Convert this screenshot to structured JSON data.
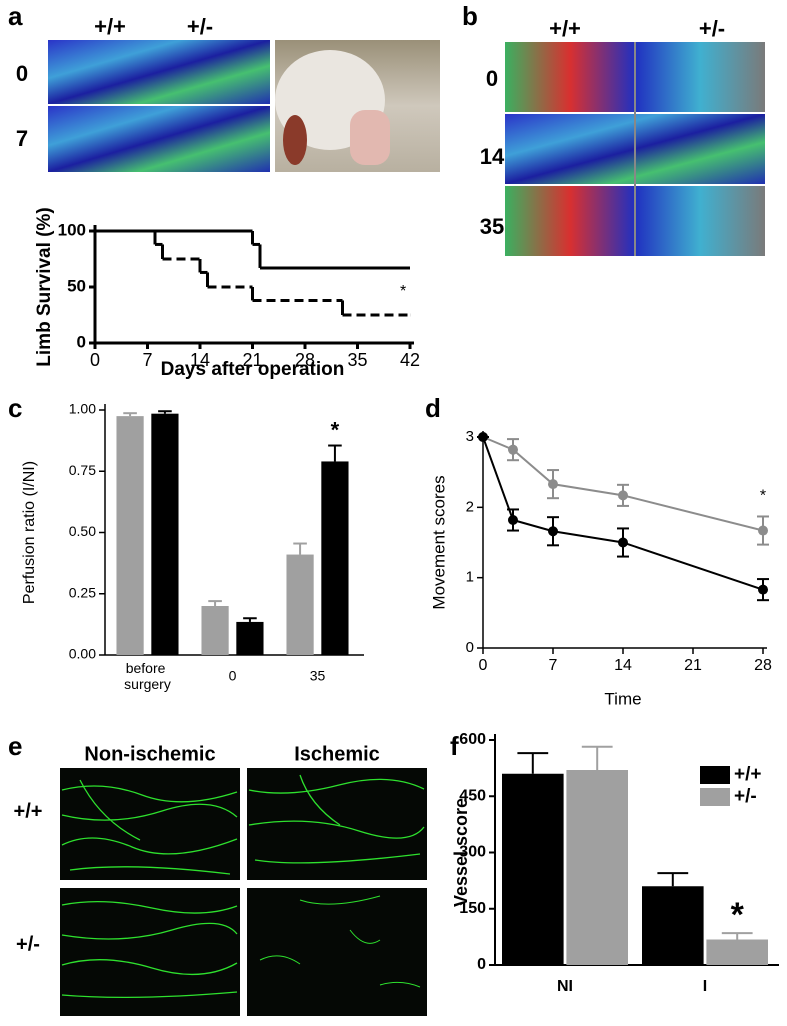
{
  "image_panels": [
    {
      "panel": "a",
      "columns": [
        "+/+",
        "+/-"
      ],
      "rows": [
        "0",
        "7"
      ]
    },
    {
      "panel": "b",
      "columns": [
        "+/+",
        "+/-"
      ],
      "rows": [
        "0",
        "14",
        "35"
      ]
    },
    {
      "panel": "e",
      "columns": [
        "Non-ischemic",
        "Ischemic"
      ],
      "rows": [
        "+/+",
        "+/-"
      ]
    }
  ],
  "chart_data": [
    {
      "type": "step",
      "y_label": "Limb Survival (%)",
      "x_label": "Days after operation",
      "xlim": [
        0,
        42
      ],
      "xticks": [
        0,
        7,
        14,
        21,
        28,
        35,
        42
      ],
      "ylim": [
        0,
        100
      ],
      "yticks": [
        0,
        50,
        100
      ],
      "annotation": "*",
      "series": [
        {
          "color": "#000000",
          "line_style": "solid",
          "x": [
            0,
            21,
            22,
            42
          ],
          "values": [
            100,
            88,
            67,
            67
          ]
        },
        {
          "color": "#000000",
          "line_style": "dashed",
          "x": [
            0,
            8,
            9,
            14,
            15,
            21,
            33,
            42
          ],
          "values": [
            100,
            88,
            75,
            63,
            50,
            38,
            25,
            25
          ]
        }
      ]
    },
    {
      "type": "bar",
      "panel": "c",
      "y_label": "Perfusion ratio (I/NI)",
      "categories": [
        "before surgery",
        "0",
        "35"
      ],
      "ylim": [
        0,
        1
      ],
      "yticks": [
        {
          "value": 0,
          "label": "0.00"
        },
        {
          "value": 0.25,
          "label": "0.25"
        },
        {
          "value": 0.5,
          "label": "0.50"
        },
        {
          "value": 0.75,
          "label": "0.75"
        },
        {
          "value": 1,
          "label": "1.00"
        }
      ],
      "annotation": "*",
      "series": [
        {
          "color": "#a0a0a0",
          "values": [
            0.975,
            0.2,
            0.41
          ],
          "errors": [
            0.012,
            0.02,
            0.045
          ]
        },
        {
          "color": "#000000",
          "values": [
            0.985,
            0.135,
            0.79
          ],
          "errors": [
            0.01,
            0.015,
            0.065
          ]
        }
      ]
    },
    {
      "type": "line",
      "panel": "d",
      "y_label": "Movement scores",
      "x_label": "Time",
      "xlim": [
        0,
        28
      ],
      "xticks": [
        0,
        7,
        14,
        21,
        28
      ],
      "ylim": [
        0,
        3
      ],
      "yticks": [
        0,
        1,
        2,
        3
      ],
      "annotation": "*",
      "x": [
        0,
        3,
        7,
        14,
        28
      ],
      "series": [
        {
          "color": "#8c8c8c",
          "values": [
            3,
            2.82,
            2.33,
            2.17,
            1.67
          ],
          "errors": [
            0,
            0.15,
            0.2,
            0.15,
            0.2
          ]
        },
        {
          "color": "#000000",
          "values": [
            3,
            1.82,
            1.66,
            1.5,
            0.83
          ],
          "errors": [
            0,
            0.15,
            0.2,
            0.2,
            0.15
          ]
        }
      ]
    },
    {
      "type": "bar",
      "panel": "f",
      "y_label": "Vessel score",
      "categories": [
        "NI",
        "I"
      ],
      "ylim": [
        0,
        600
      ],
      "yticks": [
        0,
        150,
        300,
        450,
        600
      ],
      "legend": "upper right",
      "annotation": "*",
      "series": [
        {
          "name": "+/+",
          "color": "#000000",
          "values": [
            510,
            210
          ],
          "errors": [
            55,
            35
          ]
        },
        {
          "name": "+/-",
          "color": "#a0a0a0",
          "values": [
            520,
            68
          ],
          "errors": [
            62,
            17
          ]
        }
      ]
    }
  ]
}
